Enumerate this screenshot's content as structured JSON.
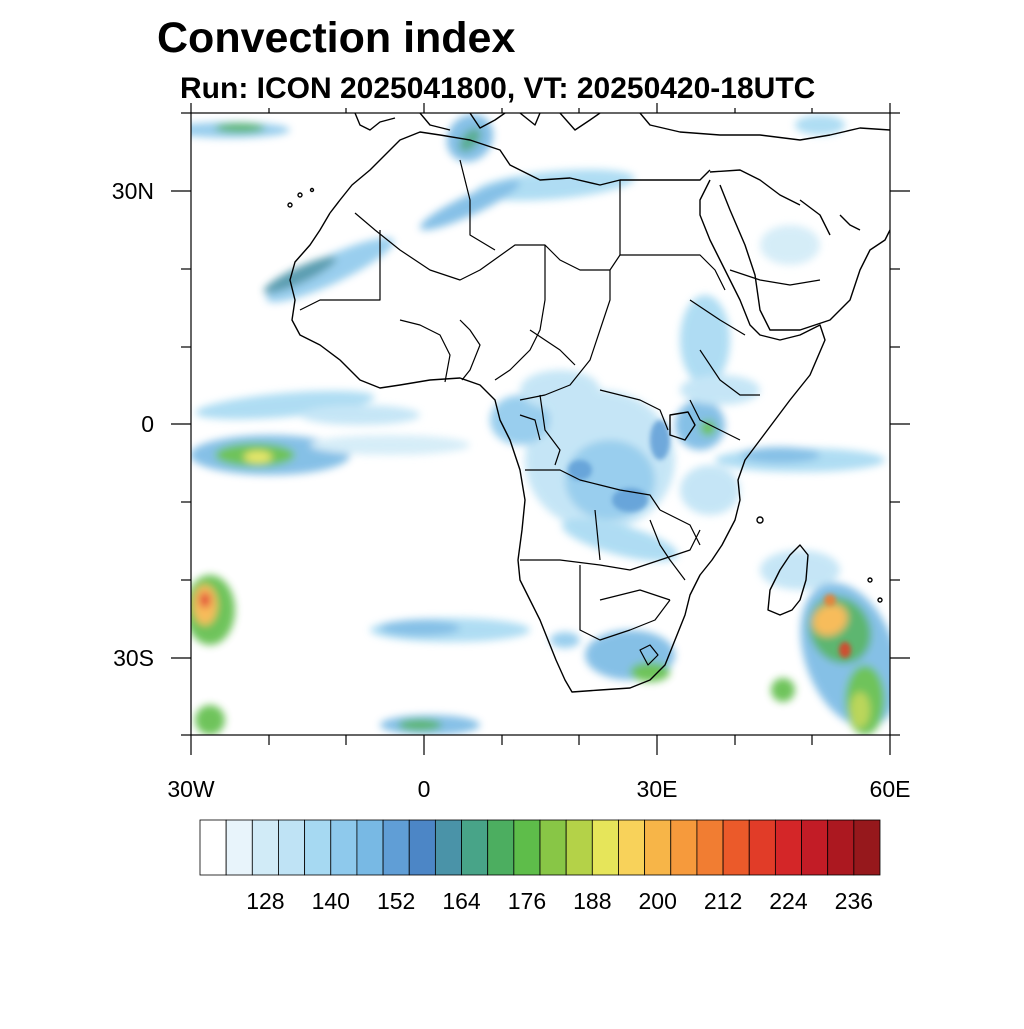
{
  "title": "Convection index",
  "subtitle": "Run: ICON 2025041800,  VT: 20250420-18UTC",
  "lat_labels": [
    "30N",
    "0",
    "30S"
  ],
  "lon_labels": [
    "30W",
    "0",
    "30E",
    "60E"
  ],
  "colorbar": {
    "colors": [
      "#ffffff",
      "#e8f4fb",
      "#d1ebf7",
      "#bfe3f5",
      "#a6d9f2",
      "#8ec9ec",
      "#78b9e4",
      "#609ed6",
      "#4c86c6",
      "#4a93a8",
      "#48a488",
      "#4cae60",
      "#5ebd4a",
      "#88c646",
      "#b4d248",
      "#e6e55a",
      "#f8d25a",
      "#f7b548",
      "#f69a3c",
      "#f17d32",
      "#eb5a2a",
      "#e13c28",
      "#d42628",
      "#c21c26",
      "#ac1820",
      "#96181c"
    ],
    "labels": [
      "128",
      "140",
      "152",
      "164",
      "176",
      "188",
      "200",
      "212",
      "224",
      "236"
    ]
  }
}
